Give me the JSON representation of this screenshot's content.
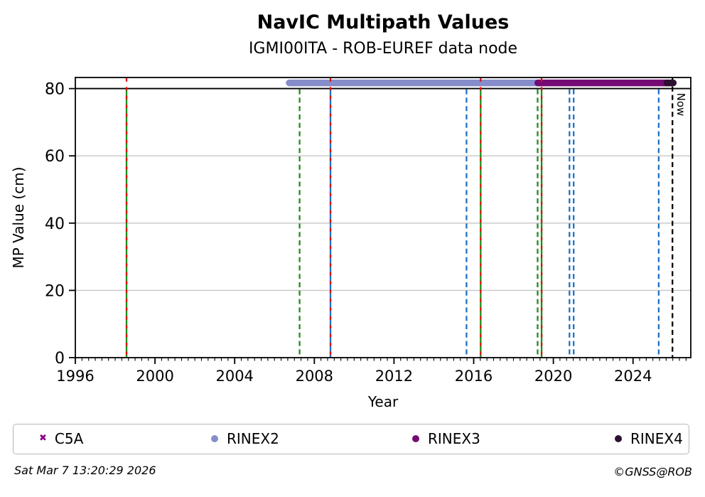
{
  "title": "NavIC Multipath Values",
  "subtitle": "IGMI00ITA - ROB-EUREF data node",
  "footer": {
    "timestamp": "Sat Mar  7 13:20:29 2026",
    "credit": "©GNSS@ROB"
  },
  "now_label": "Now",
  "colors": {
    "frame": "#000000",
    "gridline": "#c6c6c6",
    "threshold_line": "#000000",
    "event_green": "#1e8c1e",
    "event_blue": "#2070c0",
    "event_red": "#dd1111",
    "now_line": "#000000",
    "c5a": "#8b008b",
    "rinex2": "#868dca",
    "rinex3": "#750a75",
    "rinex4": "#2c1030"
  },
  "legend": {
    "items": [
      {
        "label": "C5A",
        "marker": "x",
        "color": "#8b008b",
        "x": 36
      },
      {
        "label": "RINEX2",
        "marker": "dot",
        "color": "#868dca",
        "x": 278
      },
      {
        "label": "RINEX3",
        "marker": "dot",
        "color": "#750a75",
        "x": 561
      },
      {
        "label": "RINEX4",
        "marker": "dot",
        "color": "#2c1030",
        "x": 846
      }
    ]
  },
  "chart_data": {
    "type": "line",
    "title": "NavIC Multipath Values",
    "subtitle": "IGMI00ITA - ROB-EUREF data node",
    "xlabel": "Year",
    "ylabel": "MP Value (cm)",
    "xlim": [
      1996,
      2026.9
    ],
    "ylim": [
      0,
      83.3
    ],
    "xticks": [
      1996,
      2000,
      2004,
      2008,
      2012,
      2016,
      2020,
      2024
    ],
    "yticks": [
      0,
      20,
      40,
      60,
      80
    ],
    "x_minor_tick_step_years": 0.3333,
    "grid": "horizontal",
    "gridline_values": [
      20,
      40,
      60
    ],
    "threshold_line_y": 80,
    "legend_position": "bottom",
    "series": [
      {
        "name": "C5A",
        "marker": "x",
        "color": "#8b008b",
        "y": null,
        "x_start": null,
        "x_end": null
      },
      {
        "name": "RINEX2",
        "marker": "dot",
        "color": "#868dca",
        "y": 81.7,
        "x_start": 2006.74,
        "x_end": 2019.4
      },
      {
        "name": "RINEX3",
        "marker": "dot",
        "color": "#750a75",
        "y": 81.7,
        "x_start": 2019.22,
        "x_end": 2025.7
      },
      {
        "name": "RINEX4",
        "marker": "dot",
        "color": "#2c1030",
        "y": 81.7,
        "x_start": 2025.7,
        "x_end": 2026.02
      }
    ],
    "event_lines": [
      {
        "x": 1998.57,
        "color": "green",
        "style": "solid",
        "red_overlay": true
      },
      {
        "x": 2007.26,
        "color": "green",
        "style": "dashed",
        "red_overlay": false
      },
      {
        "x": 2008.81,
        "color": "blue",
        "style": "solid",
        "red_overlay": true
      },
      {
        "x": 2015.64,
        "color": "blue",
        "style": "dashed",
        "red_overlay": false
      },
      {
        "x": 2016.35,
        "color": "green",
        "style": "solid",
        "red_overlay": true
      },
      {
        "x": 2019.21,
        "color": "green",
        "style": "dashed",
        "red_overlay": false
      },
      {
        "x": 2019.41,
        "color": "green",
        "style": "solid",
        "red_overlay": true
      },
      {
        "x": 2020.81,
        "color": "blue",
        "style": "dashed",
        "red_overlay": false
      },
      {
        "x": 2021.02,
        "color": "blue",
        "style": "dashed",
        "red_overlay": false
      },
      {
        "x": 2025.29,
        "color": "blue",
        "style": "dashed",
        "red_overlay": false
      },
      {
        "x": 2025.98,
        "color": "black",
        "style": "dashed",
        "red_overlay": false,
        "label": "Now"
      }
    ]
  }
}
